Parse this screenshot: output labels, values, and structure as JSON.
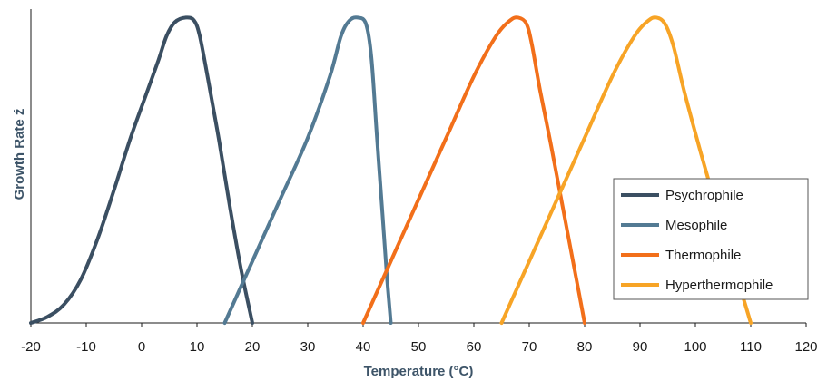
{
  "chart_data": {
    "type": "line",
    "xlabel": "Temperature (°C)",
    "ylabel": "Growth Rate ź",
    "xlim": [
      -20,
      120
    ],
    "ylim": [
      0,
      1
    ],
    "xticks": [
      "-20",
      "-10",
      "0",
      "10",
      "20",
      "30",
      "40",
      "50",
      "60",
      "70",
      "80",
      "90",
      "100",
      "110",
      "120"
    ],
    "grid": false,
    "legend_position": "bottom-right",
    "series": [
      {
        "name": "Psychrophile",
        "color": "#3b4f62",
        "points": [
          [
            -20,
            0
          ],
          [
            -17,
            0.02
          ],
          [
            -14,
            0.06
          ],
          [
            -11,
            0.14
          ],
          [
            -8,
            0.27
          ],
          [
            -5,
            0.43
          ],
          [
            -2,
            0.6
          ],
          [
            1,
            0.75
          ],
          [
            3,
            0.85
          ],
          [
            4.5,
            0.93
          ],
          [
            6,
            0.975
          ],
          [
            8,
            0.99
          ],
          [
            9.5,
            0.98
          ],
          [
            10.5,
            0.93
          ],
          [
            12,
            0.79
          ],
          [
            14,
            0.59
          ],
          [
            16,
            0.37
          ],
          [
            18,
            0.17
          ],
          [
            20,
            0
          ]
        ]
      },
      {
        "name": "Mesophile",
        "color": "#537a93",
        "points": [
          [
            15,
            0
          ],
          [
            20,
            0.2
          ],
          [
            25,
            0.4
          ],
          [
            30,
            0.6
          ],
          [
            34,
            0.8
          ],
          [
            36,
            0.93
          ],
          [
            37.5,
            0.98
          ],
          [
            39,
            0.99
          ],
          [
            40.5,
            0.97
          ],
          [
            41.5,
            0.86
          ],
          [
            42.5,
            0.6
          ],
          [
            43.5,
            0.35
          ],
          [
            44.3,
            0.15
          ],
          [
            45,
            0
          ]
        ]
      },
      {
        "name": "Thermophile",
        "color": "#f26f1a",
        "points": [
          [
            40,
            0
          ],
          [
            45,
            0.2
          ],
          [
            50,
            0.4
          ],
          [
            55,
            0.6
          ],
          [
            60,
            0.8
          ],
          [
            64,
            0.93
          ],
          [
            66.5,
            0.98
          ],
          [
            68,
            0.99
          ],
          [
            69.5,
            0.97
          ],
          [
            70.5,
            0.9
          ],
          [
            72,
            0.75
          ],
          [
            74,
            0.57
          ],
          [
            76,
            0.38
          ],
          [
            78,
            0.19
          ],
          [
            80,
            0
          ]
        ]
      },
      {
        "name": "Hyperthermophile",
        "color": "#f7a426",
        "points": [
          [
            65,
            0
          ],
          [
            70,
            0.2
          ],
          [
            75,
            0.4
          ],
          [
            80,
            0.6
          ],
          [
            85,
            0.8
          ],
          [
            89,
            0.93
          ],
          [
            91.5,
            0.98
          ],
          [
            93,
            0.99
          ],
          [
            94.5,
            0.97
          ],
          [
            96,
            0.9
          ],
          [
            98,
            0.75
          ],
          [
            101,
            0.55
          ],
          [
            104,
            0.36
          ],
          [
            107,
            0.18
          ],
          [
            110,
            0
          ]
        ]
      }
    ]
  }
}
